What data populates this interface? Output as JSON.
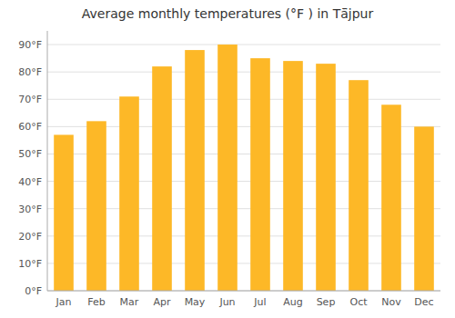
{
  "chart_data": {
    "type": "bar",
    "title": "Average monthly temperatures (°F ) in Tā̈jpur",
    "categories": [
      "Jan",
      "Feb",
      "Mar",
      "Apr",
      "May",
      "Jun",
      "Jul",
      "Aug",
      "Sep",
      "Oct",
      "Nov",
      "Dec"
    ],
    "values": [
      57,
      62,
      71,
      82,
      88,
      90,
      85,
      84,
      83,
      77,
      68,
      60
    ],
    "color": "#FDB827",
    "ylim": [
      0,
      95
    ],
    "yticks": [
      {
        "value": 0,
        "label": "0°F"
      },
      {
        "value": 10,
        "label": "10°F"
      },
      {
        "value": 20,
        "label": "20°F"
      },
      {
        "value": 30,
        "label": "30°F"
      },
      {
        "value": 40,
        "label": "40°F"
      },
      {
        "value": 50,
        "label": "50°F"
      },
      {
        "value": 60,
        "label": "60°F"
      },
      {
        "value": 70,
        "label": "70°F"
      },
      {
        "value": 80,
        "label": "80°F"
      },
      {
        "value": 90,
        "label": "90°F"
      }
    ],
    "grid": true
  }
}
